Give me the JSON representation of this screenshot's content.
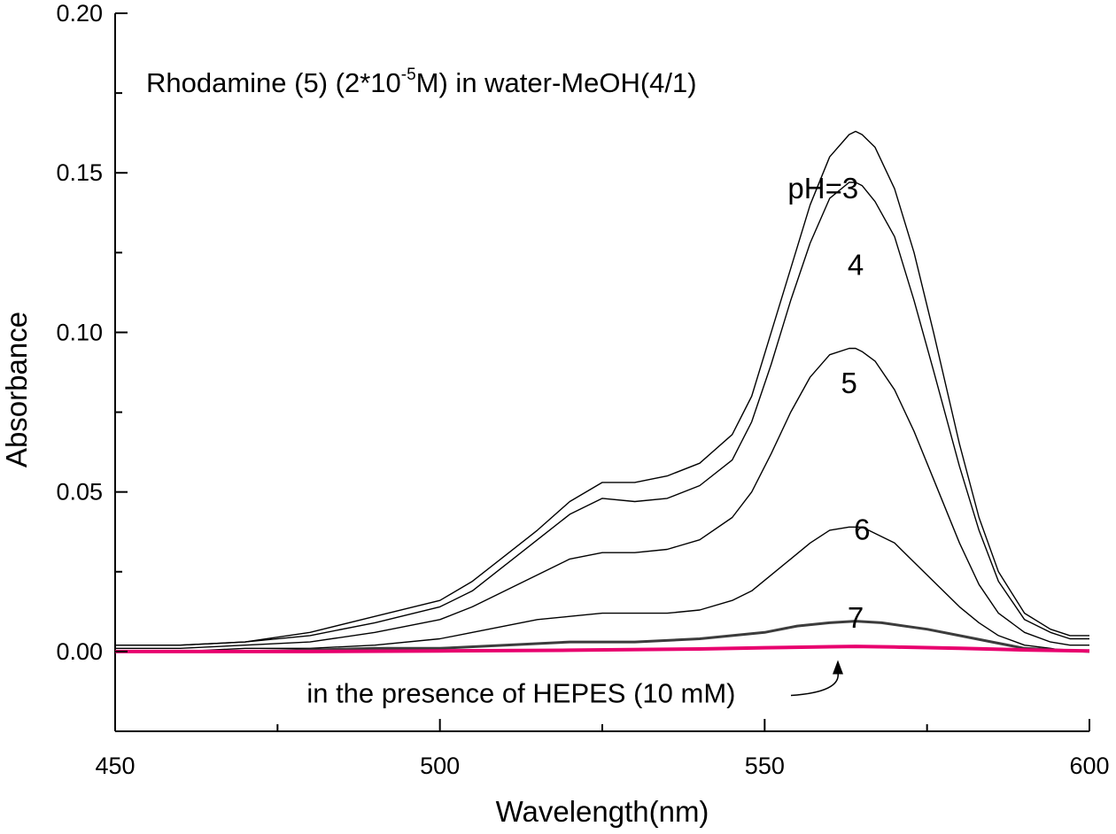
{
  "chart_data": {
    "type": "line",
    "title_parts": {
      "before": "Rhodamine (5) (2*10",
      "superscript": "-5",
      "after": "M) in water-MeOH(4/1)"
    },
    "xlabel": "Wavelength(nm)",
    "ylabel": "Absorbance",
    "xlim": [
      450,
      600
    ],
    "ylim": [
      -0.025,
      0.2
    ],
    "x_ticks": [
      "450",
      "500",
      "550",
      "600"
    ],
    "y_ticks": [
      "0.00",
      "0.05",
      "0.10",
      "0.15",
      "0.20"
    ],
    "x_tick_values": [
      450,
      500,
      550,
      600
    ],
    "y_tick_values": [
      0,
      0.05,
      0.1,
      0.15,
      0.2
    ],
    "grid": false,
    "series": [
      {
        "name": "pH=3",
        "color": "#000000",
        "x": [
          450,
          460,
          470,
          480,
          490,
          500,
          505,
          510,
          515,
          520,
          525,
          530,
          535,
          540,
          545,
          548,
          551,
          554,
          557,
          560,
          563,
          564,
          565,
          567,
          570,
          573,
          576,
          580,
          583,
          586,
          590,
          594,
          597,
          600
        ],
        "y": [
          0.002,
          0.002,
          0.003,
          0.006,
          0.011,
          0.016,
          0.022,
          0.03,
          0.038,
          0.047,
          0.053,
          0.053,
          0.055,
          0.059,
          0.068,
          0.08,
          0.1,
          0.12,
          0.14,
          0.155,
          0.162,
          0.163,
          0.162,
          0.158,
          0.145,
          0.125,
          0.1,
          0.065,
          0.042,
          0.025,
          0.012,
          0.007,
          0.005,
          0.005
        ]
      },
      {
        "name": "4",
        "color": "#000000",
        "x": [
          450,
          460,
          470,
          480,
          490,
          500,
          505,
          510,
          515,
          520,
          525,
          530,
          535,
          540,
          545,
          548,
          551,
          554,
          557,
          560,
          563,
          564,
          565,
          567,
          570,
          573,
          576,
          580,
          583,
          586,
          590,
          594,
          597,
          600
        ],
        "y": [
          0.002,
          0.002,
          0.003,
          0.005,
          0.009,
          0.014,
          0.019,
          0.027,
          0.035,
          0.043,
          0.048,
          0.047,
          0.048,
          0.052,
          0.06,
          0.072,
          0.09,
          0.11,
          0.128,
          0.142,
          0.147,
          0.147,
          0.146,
          0.141,
          0.13,
          0.11,
          0.088,
          0.058,
          0.038,
          0.022,
          0.01,
          0.006,
          0.004,
          0.004
        ]
      },
      {
        "name": "5",
        "color": "#000000",
        "x": [
          450,
          460,
          470,
          480,
          490,
          500,
          505,
          510,
          515,
          520,
          525,
          530,
          535,
          540,
          545,
          548,
          551,
          554,
          557,
          560,
          563,
          564,
          565,
          567,
          570,
          573,
          576,
          580,
          583,
          586,
          590,
          594,
          597,
          600
        ],
        "y": [
          0.001,
          0.001,
          0.002,
          0.003,
          0.006,
          0.01,
          0.014,
          0.019,
          0.024,
          0.029,
          0.031,
          0.031,
          0.032,
          0.035,
          0.042,
          0.05,
          0.062,
          0.075,
          0.086,
          0.093,
          0.095,
          0.095,
          0.094,
          0.091,
          0.082,
          0.069,
          0.054,
          0.034,
          0.021,
          0.012,
          0.006,
          0.003,
          0.002,
          0.002
        ]
      },
      {
        "name": "6",
        "color": "#000000",
        "x": [
          450,
          460,
          470,
          480,
          490,
          500,
          505,
          510,
          515,
          520,
          525,
          530,
          535,
          540,
          545,
          548,
          551,
          554,
          557,
          560,
          563,
          564,
          565,
          567,
          570,
          573,
          576,
          580,
          583,
          586,
          590,
          594,
          597,
          600
        ],
        "y": [
          0.0,
          0.0,
          0.001,
          0.001,
          0.002,
          0.004,
          0.006,
          0.008,
          0.01,
          0.011,
          0.012,
          0.012,
          0.012,
          0.013,
          0.016,
          0.019,
          0.024,
          0.029,
          0.034,
          0.038,
          0.039,
          0.039,
          0.039,
          0.037,
          0.034,
          0.028,
          0.022,
          0.014,
          0.009,
          0.005,
          0.002,
          0.001,
          0.0,
          0.0
        ]
      },
      {
        "name": "7",
        "color": "#3c3c3c",
        "x": [
          450,
          470,
          490,
          500,
          510,
          520,
          530,
          540,
          550,
          555,
          560,
          564,
          568,
          575,
          580,
          585,
          590,
          595,
          600
        ],
        "y": [
          0.0,
          0.0,
          0.001,
          0.001,
          0.002,
          0.003,
          0.003,
          0.004,
          0.006,
          0.008,
          0.009,
          0.0095,
          0.009,
          0.007,
          0.005,
          0.003,
          0.001,
          0.0005,
          0.0
        ]
      },
      {
        "name": "in the presence of HEPES (10 mM)",
        "color": "#e8006e",
        "x": [
          450,
          480,
          500,
          520,
          540,
          550,
          560,
          564,
          570,
          580,
          590,
          600
        ],
        "y": [
          0.0,
          0.0,
          0.0002,
          0.0004,
          0.0008,
          0.0012,
          0.0015,
          0.0016,
          0.0014,
          0.001,
          0.0005,
          0.0002
        ]
      }
    ],
    "labels": [
      {
        "text": "pH=3",
        "x": 559,
        "y": 0.142
      },
      {
        "text": "4",
        "x": 564,
        "y": 0.118
      },
      {
        "text": "5",
        "x": 563,
        "y": 0.081
      },
      {
        "text": "6",
        "x": 565,
        "y": 0.035
      },
      {
        "text": "7",
        "x": 564,
        "y": 0.0075
      },
      {
        "text": "in the presence of HEPES (10 mM)",
        "x": 479.5,
        "y": -0.016
      }
    ],
    "arrow": {
      "from_x": 567,
      "from_y": -0.016,
      "to_x": 561,
      "to_y": -0.001
    }
  }
}
